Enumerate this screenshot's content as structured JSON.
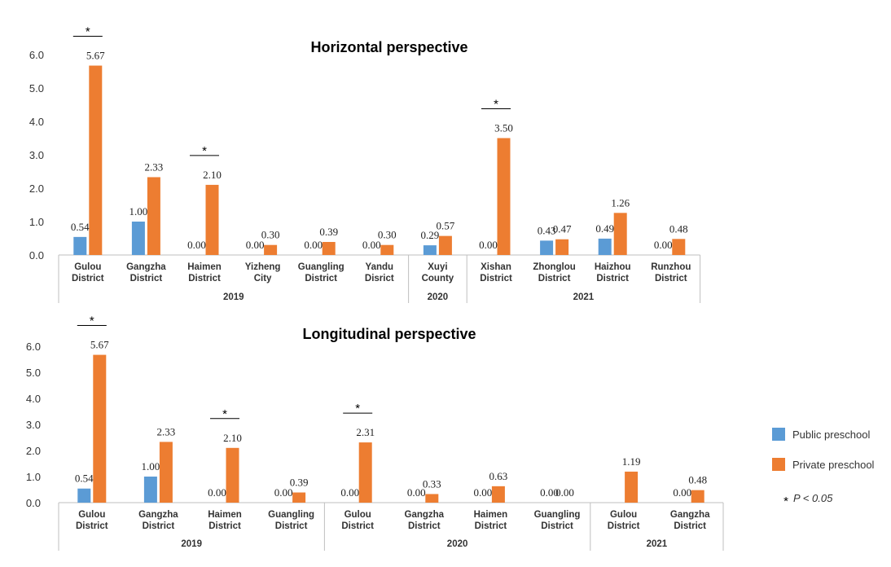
{
  "colors": {
    "public": "#5B9BD5",
    "private": "#ED7D31",
    "axis": "#BFBFBF"
  },
  "legend": {
    "public_label": "Public preschool",
    "private_label": "Private preschool",
    "sig_star": "*",
    "sig_label": "P < 0.05"
  },
  "chart_data": [
    {
      "type": "bar",
      "title": "Horizontal perspective",
      "ylim": [
        0,
        6
      ],
      "yticks": [
        "0.0",
        "1.0",
        "2.0",
        "3.0",
        "4.0",
        "5.0",
        "6.0"
      ],
      "categories": [
        [
          "Gulou",
          "District"
        ],
        [
          "Gangzha",
          "District"
        ],
        [
          "Haimen",
          "District"
        ],
        [
          "Yizheng",
          "City"
        ],
        [
          "Guangling",
          "District"
        ],
        [
          "Yandu",
          "Disrict"
        ],
        [
          "Xuyi",
          "County"
        ],
        [
          "Xishan",
          "District"
        ],
        [
          "Zhonglou",
          "District"
        ],
        [
          "Haizhou",
          "District"
        ],
        [
          "Runzhou",
          "District"
        ]
      ],
      "groups": [
        {
          "label": "2019",
          "count": 6
        },
        {
          "label": "2020",
          "count": 1
        },
        {
          "label": "2021",
          "count": 4
        }
      ],
      "series": [
        {
          "name": "Public preschool",
          "values": [
            0.54,
            1.0,
            0.0,
            0.0,
            0.0,
            0.0,
            0.29,
            0.0,
            0.43,
            0.49,
            0.0
          ],
          "labels": [
            "0.54",
            "1.00",
            "0.00",
            "0.00",
            "0.00",
            "0.00",
            "0.29",
            "0.00",
            "0.43",
            "0.49",
            "0.00"
          ]
        },
        {
          "name": "Private preschool",
          "values": [
            5.67,
            2.33,
            2.1,
            0.3,
            0.39,
            0.3,
            0.57,
            3.5,
            0.47,
            1.26,
            0.48
          ],
          "labels": [
            "5.67",
            "2.33",
            "2.10",
            "0.30",
            "0.39",
            "0.30",
            "0.57",
            "3.50",
            "0.47",
            "1.26",
            "0.48"
          ]
        }
      ],
      "significant": [
        0,
        2,
        7
      ]
    },
    {
      "type": "bar",
      "title": "Longitudinal perspective",
      "ylim": [
        0,
        6
      ],
      "yticks": [
        "0.0",
        "1.0",
        "2.0",
        "3.0",
        "4.0",
        "5.0",
        "6.0"
      ],
      "categories": [
        [
          "Gulou",
          "District"
        ],
        [
          "Gangzha",
          "District"
        ],
        [
          "Haimen",
          "District"
        ],
        [
          "Guangling",
          "District"
        ],
        [
          "Gulou",
          "District"
        ],
        [
          "Gangzha",
          "District"
        ],
        [
          "Haimen",
          "District"
        ],
        [
          "Guangling",
          "District"
        ],
        [
          "Gulou",
          "District"
        ],
        [
          "Gangzha",
          "District"
        ]
      ],
      "groups": [
        {
          "label": "2019",
          "count": 4
        },
        {
          "label": "2020",
          "count": 4
        },
        {
          "label": "2021",
          "count": 2
        }
      ],
      "series": [
        {
          "name": "Public preschool",
          "values": [
            0.54,
            1.0,
            0.0,
            0.0,
            0.0,
            0.0,
            0.0,
            0.0,
            null,
            0.0
          ],
          "labels": [
            "0.54",
            "1.00",
            "0.00",
            "0.00",
            "0.00",
            "0.00",
            "0.00",
            "0.00",
            "",
            "0.00"
          ]
        },
        {
          "name": "Private preschool",
          "values": [
            5.67,
            2.33,
            2.1,
            0.39,
            2.31,
            0.33,
            0.63,
            0.0,
            1.19,
            0.48
          ],
          "labels": [
            "5.67",
            "2.33",
            "2.10",
            "0.39",
            "2.31",
            "0.33",
            "0.63",
            "0.00",
            "1.19",
            "0.48"
          ]
        }
      ],
      "significant": [
        0,
        2,
        4
      ]
    }
  ]
}
